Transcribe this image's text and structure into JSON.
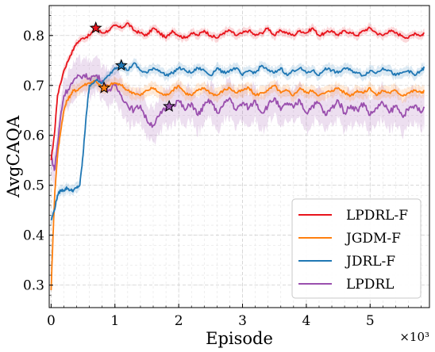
{
  "chart_data": {
    "type": "line",
    "xlabel": "Episode",
    "ylabel": "AvgCAQA",
    "x_multiplier_label": "×10³",
    "xlim": [
      -0.03,
      5.93
    ],
    "ylim": [
      0.255,
      0.86
    ],
    "x_ticks": [
      0,
      1,
      2,
      3,
      4,
      5
    ],
    "x_tick_labels": [
      "0",
      "1",
      "2",
      "3",
      "4",
      "5"
    ],
    "y_ticks": [
      0.3,
      0.4,
      0.5,
      0.6,
      0.7,
      0.8
    ],
    "y_tick_labels": [
      "0.3",
      "0.4",
      "0.5",
      "0.6",
      "0.7",
      "0.8"
    ],
    "grid": true,
    "legend_position": "lower-right",
    "series": [
      {
        "name": "LPDRL-F",
        "color": "#e8141c",
        "band": 0.008,
        "best": {
          "x": 0.7,
          "y": 0.815
        },
        "x": [
          0,
          0.05,
          0.1,
          0.2,
          0.3,
          0.4,
          0.5,
          0.6,
          0.7,
          0.8,
          0.9,
          1.0,
          1.1,
          1.2,
          1.3,
          1.4,
          1.5,
          1.6,
          1.7,
          1.8,
          1.9,
          2.0,
          2.1,
          2.2,
          2.3,
          2.4,
          2.5,
          2.6,
          2.7,
          2.8,
          2.9,
          3.0,
          3.1,
          3.2,
          3.3,
          3.4,
          3.5,
          3.6,
          3.7,
          3.8,
          3.9,
          4.0,
          4.1,
          4.2,
          4.3,
          4.4,
          4.5,
          4.6,
          4.7,
          4.8,
          4.9,
          5.0,
          5.1,
          5.2,
          5.3,
          5.4,
          5.5,
          5.6,
          5.7,
          5.8,
          5.85
        ],
        "y": [
          0.55,
          0.6,
          0.68,
          0.73,
          0.76,
          0.785,
          0.795,
          0.8,
          0.815,
          0.805,
          0.81,
          0.82,
          0.815,
          0.825,
          0.81,
          0.805,
          0.8,
          0.815,
          0.805,
          0.795,
          0.81,
          0.8,
          0.795,
          0.805,
          0.8,
          0.81,
          0.8,
          0.795,
          0.805,
          0.81,
          0.8,
          0.805,
          0.81,
          0.8,
          0.805,
          0.815,
          0.8,
          0.81,
          0.805,
          0.8,
          0.81,
          0.805,
          0.815,
          0.8,
          0.805,
          0.81,
          0.8,
          0.81,
          0.805,
          0.8,
          0.81,
          0.815,
          0.805,
          0.8,
          0.81,
          0.805,
          0.8,
          0.795,
          0.805,
          0.8,
          0.805
        ]
      },
      {
        "name": "JGDM-F",
        "color": "#ff7f0e",
        "band": 0.012,
        "best": {
          "x": 0.83,
          "y": 0.695
        },
        "x": [
          0,
          0.03,
          0.06,
          0.1,
          0.15,
          0.2,
          0.25,
          0.3,
          0.35,
          0.4,
          0.5,
          0.6,
          0.7,
          0.8,
          0.9,
          1.0,
          1.1,
          1.2,
          1.3,
          1.4,
          1.5,
          1.6,
          1.7,
          1.8,
          1.9,
          2.0,
          2.1,
          2.2,
          2.3,
          2.4,
          2.5,
          2.6,
          2.7,
          2.8,
          2.9,
          3.0,
          3.1,
          3.2,
          3.3,
          3.4,
          3.5,
          3.6,
          3.7,
          3.8,
          3.9,
          4.0,
          4.1,
          4.2,
          4.3,
          4.4,
          4.5,
          4.6,
          4.7,
          4.8,
          4.9,
          5.0,
          5.1,
          5.2,
          5.3,
          5.4,
          5.5,
          5.6,
          5.7,
          5.8,
          5.85
        ],
        "y": [
          0.29,
          0.4,
          0.49,
          0.56,
          0.61,
          0.65,
          0.67,
          0.68,
          0.69,
          0.69,
          0.7,
          0.705,
          0.71,
          0.695,
          0.7,
          0.705,
          0.7,
          0.69,
          0.685,
          0.68,
          0.69,
          0.695,
          0.685,
          0.68,
          0.69,
          0.7,
          0.685,
          0.68,
          0.69,
          0.695,
          0.685,
          0.68,
          0.69,
          0.695,
          0.685,
          0.69,
          0.695,
          0.68,
          0.685,
          0.69,
          0.7,
          0.685,
          0.69,
          0.68,
          0.695,
          0.685,
          0.69,
          0.68,
          0.685,
          0.69,
          0.695,
          0.685,
          0.68,
          0.69,
          0.685,
          0.695,
          0.68,
          0.69,
          0.685,
          0.69,
          0.68,
          0.685,
          0.69,
          0.685,
          0.69
        ]
      },
      {
        "name": "JDRL-F",
        "color": "#1f77b4",
        "band": 0.01,
        "best": {
          "x": 1.1,
          "y": 0.74
        },
        "x": [
          0,
          0.05,
          0.1,
          0.15,
          0.2,
          0.25,
          0.3,
          0.35,
          0.4,
          0.45,
          0.5,
          0.55,
          0.6,
          0.7,
          0.8,
          0.9,
          1.0,
          1.1,
          1.2,
          1.3,
          1.4,
          1.5,
          1.6,
          1.7,
          1.8,
          1.9,
          2.0,
          2.1,
          2.2,
          2.3,
          2.4,
          2.5,
          2.6,
          2.7,
          2.8,
          2.9,
          3.0,
          3.1,
          3.2,
          3.3,
          3.4,
          3.5,
          3.6,
          3.7,
          3.8,
          3.9,
          4.0,
          4.1,
          4.2,
          4.3,
          4.4,
          4.5,
          4.6,
          4.7,
          4.8,
          4.9,
          5.0,
          5.1,
          5.2,
          5.3,
          5.4,
          5.5,
          5.6,
          5.7,
          5.8,
          5.85
        ],
        "y": [
          0.43,
          0.45,
          0.48,
          0.49,
          0.49,
          0.495,
          0.49,
          0.49,
          0.495,
          0.5,
          0.56,
          0.64,
          0.7,
          0.71,
          0.705,
          0.72,
          0.735,
          0.74,
          0.73,
          0.745,
          0.73,
          0.725,
          0.735,
          0.73,
          0.72,
          0.725,
          0.735,
          0.73,
          0.725,
          0.735,
          0.73,
          0.72,
          0.735,
          0.725,
          0.73,
          0.735,
          0.72,
          0.73,
          0.725,
          0.74,
          0.73,
          0.725,
          0.735,
          0.72,
          0.73,
          0.735,
          0.725,
          0.73,
          0.72,
          0.735,
          0.73,
          0.725,
          0.735,
          0.73,
          0.725,
          0.72,
          0.73,
          0.725,
          0.735,
          0.73,
          0.72,
          0.725,
          0.73,
          0.72,
          0.73,
          0.735
        ]
      },
      {
        "name": "LPDRL",
        "color": "#9a4fae",
        "band": 0.035,
        "best": {
          "x": 1.85,
          "y": 0.658
        },
        "x": [
          0,
          0.05,
          0.1,
          0.15,
          0.2,
          0.3,
          0.4,
          0.5,
          0.6,
          0.7,
          0.8,
          0.9,
          1.0,
          1.1,
          1.2,
          1.3,
          1.4,
          1.5,
          1.6,
          1.7,
          1.8,
          1.9,
          2.0,
          2.1,
          2.2,
          2.3,
          2.4,
          2.5,
          2.6,
          2.7,
          2.8,
          2.9,
          3.0,
          3.1,
          3.2,
          3.3,
          3.4,
          3.5,
          3.6,
          3.7,
          3.8,
          3.9,
          4.0,
          4.1,
          4.2,
          4.3,
          4.4,
          4.5,
          4.6,
          4.7,
          4.8,
          4.9,
          5.0,
          5.1,
          5.2,
          5.3,
          5.4,
          5.5,
          5.6,
          5.7,
          5.8,
          5.85
        ],
        "y": [
          0.56,
          0.53,
          0.58,
          0.64,
          0.68,
          0.7,
          0.715,
          0.72,
          0.715,
          0.72,
          0.71,
          0.69,
          0.7,
          0.68,
          0.66,
          0.65,
          0.66,
          0.63,
          0.62,
          0.64,
          0.655,
          0.66,
          0.67,
          0.65,
          0.665,
          0.64,
          0.66,
          0.67,
          0.645,
          0.66,
          0.675,
          0.65,
          0.665,
          0.655,
          0.67,
          0.645,
          0.66,
          0.675,
          0.65,
          0.665,
          0.655,
          0.67,
          0.645,
          0.66,
          0.665,
          0.64,
          0.655,
          0.67,
          0.645,
          0.66,
          0.65,
          0.665,
          0.64,
          0.655,
          0.665,
          0.645,
          0.66,
          0.64,
          0.65,
          0.66,
          0.645,
          0.655
        ]
      }
    ]
  }
}
